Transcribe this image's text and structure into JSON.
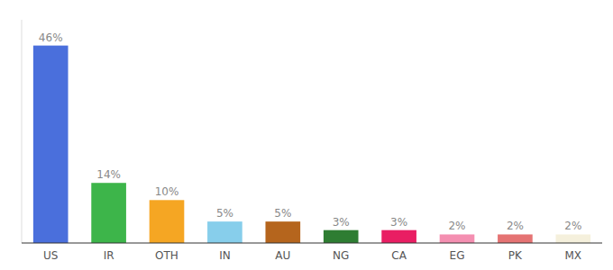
{
  "chart_data": {
    "type": "bar",
    "categories": [
      "US",
      "IR",
      "OTH",
      "IN",
      "AU",
      "NG",
      "CA",
      "EG",
      "PK",
      "MX"
    ],
    "values": [
      46,
      14,
      10,
      5,
      5,
      3,
      3,
      2,
      2,
      2
    ],
    "value_labels": [
      "46%",
      "14%",
      "10%",
      "5%",
      "5%",
      "3%",
      "3%",
      "2%",
      "2%",
      "2%"
    ],
    "colors": [
      "#4a6fdc",
      "#3db54a",
      "#f5a623",
      "#87ceeb",
      "#b5651d",
      "#2e7d32",
      "#e91e63",
      "#f48fb1",
      "#e57373",
      "#f5f0dc"
    ],
    "ylim": [
      0,
      52
    ],
    "data_labels": true,
    "tick_labels": "x",
    "grid": false
  }
}
